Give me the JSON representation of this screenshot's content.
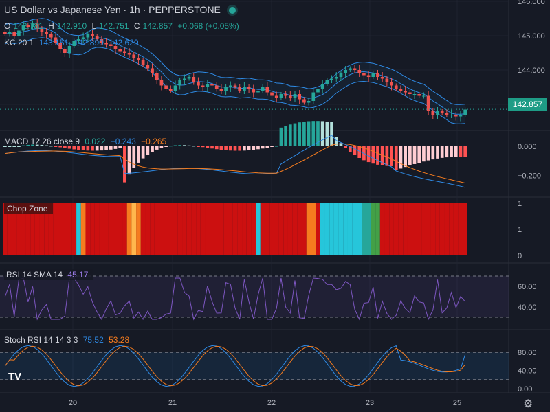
{
  "header": {
    "title": "US Dollar vs Japanese Yen · 1h · PEPPERSTONE",
    "o_label": "O",
    "o_value": "142.781",
    "h_label": "H",
    "h_value": "142.910",
    "l_label": "L",
    "l_value": "142.751",
    "c_label": "C",
    "c_value": "142.857",
    "change": "+0.068 (+0.05%)"
  },
  "kc": {
    "label": "KC 20 1",
    "upper": "143.151",
    "mid": "142.890",
    "lower": "142.629"
  },
  "macd": {
    "label": "MACD 12 26 close 9",
    "hist": "0.022",
    "macd": "−0.243",
    "signal": "−0.265"
  },
  "chop": {
    "label": "Chop Zone"
  },
  "rsi": {
    "label": "RSI 14 SMA 14",
    "value": "45.17"
  },
  "stoch": {
    "label": "Stoch RSI 14 14 3 3",
    "k": "75.52",
    "d": "53.28"
  },
  "last_price": "142.857",
  "colors": {
    "up": "#26a69a",
    "down": "#ef5350",
    "kc": "#2f8be6",
    "macd": "#2f8be6",
    "signal": "#f57c1f",
    "rsi": "#7e57c2",
    "chop_red": "#cc1010",
    "chop_cyan": "#26c6da"
  },
  "chart_data": [
    {
      "type": "candlestick",
      "title": "US Dollar vs Japanese Yen · 1h · PEPPERSTONE",
      "x_ticks": [
        "20",
        "21",
        "22",
        "23",
        "25"
      ],
      "y_ticks": [
        "146.000",
        "145.000",
        "144.000",
        "143.000"
      ],
      "ylim": [
        142.2,
        146.0
      ],
      "close": [
        145.05,
        145.1,
        145.0,
        145.15,
        145.3,
        145.25,
        145.35,
        145.2,
        145.1,
        145.05,
        144.95,
        144.8,
        144.6,
        144.5,
        144.7,
        144.85,
        144.9,
        144.95,
        145.05,
        145.0,
        144.9,
        144.8,
        144.75,
        144.7,
        144.6,
        144.55,
        144.5,
        144.45,
        144.35,
        144.3,
        144.15,
        144.05,
        143.9,
        143.7,
        143.55,
        143.45,
        143.4,
        143.55,
        143.7,
        143.75,
        143.8,
        143.65,
        143.55,
        143.5,
        143.6,
        143.55,
        143.45,
        143.4,
        143.5,
        143.55,
        143.5,
        143.4,
        143.5,
        143.45,
        143.35,
        143.4,
        143.5,
        143.35,
        143.25,
        143.2,
        143.3,
        143.25,
        143.2,
        143.3,
        143.15,
        143.05,
        143.1,
        143.35,
        143.45,
        143.6,
        143.7,
        143.75,
        143.8,
        143.9,
        144.0,
        144.05,
        144.0,
        143.9,
        143.85,
        143.8,
        143.9,
        143.8,
        143.75,
        143.65,
        143.55,
        143.45,
        143.4,
        143.35,
        143.3,
        143.3,
        143.25,
        143.25,
        142.8,
        142.7,
        142.8,
        142.75,
        142.7,
        142.7,
        142.65,
        142.7,
        142.85
      ],
      "kc": {
        "upper": "143.151",
        "mid": "142.890",
        "lower": "142.629"
      },
      "last": 142.857
    },
    {
      "type": "macd",
      "y_ticks": [
        "0.000",
        "−0.200"
      ],
      "ylim": [
        -0.32,
        0.08
      ],
      "hist_last": 0.022,
      "macd_last": -0.243,
      "signal_last": -0.265
    },
    {
      "type": "heatmap",
      "title": "Chop Zone",
      "y_ticks": [
        "1",
        "1",
        "0"
      ],
      "colors_sequence": "mostly red with cyan/teal/green block near 22–23 and isolated orange/cyan bars"
    },
    {
      "type": "line",
      "title": "RSI 14 SMA 14",
      "y_ticks": [
        "60.00",
        "40.00"
      ],
      "ylim": [
        20,
        80
      ],
      "band": [
        30,
        70
      ],
      "last": 45.17
    },
    {
      "type": "line",
      "title": "Stoch RSI 14 14 3 3",
      "y_ticks": [
        "80.00",
        "40.00",
        "0.00"
      ],
      "ylim": [
        0,
        100
      ],
      "band": [
        20,
        80
      ],
      "k_last": 75.52,
      "d_last": 53.28
    }
  ]
}
